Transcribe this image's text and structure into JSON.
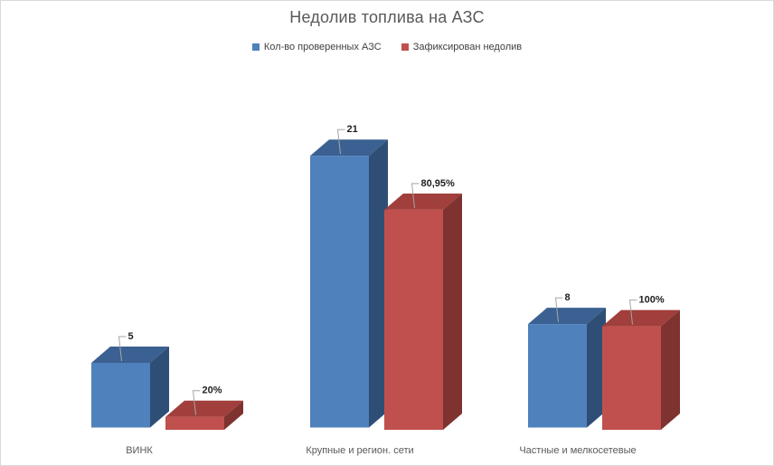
{
  "title": "Недолив топлива на АЗС",
  "legend": {
    "items": [
      {
        "label": "Кол-во проверенных АЗС",
        "color": "#4F81BD"
      },
      {
        "label": "Зафиксирован недолив",
        "color": "#C0504D"
      }
    ]
  },
  "chart_data": {
    "type": "bar",
    "style": "3d-clustered-column",
    "title": "Недолив топлива на АЗС",
    "categories": [
      "ВИНК",
      "Крупные и регион. сети",
      "Частные и мелкосетевые"
    ],
    "series": [
      {
        "name": "Кол-во проверенных АЗС",
        "values": [
          5,
          21,
          8
        ],
        "data_labels": [
          "5",
          "21",
          "8"
        ],
        "colors": {
          "front": "#4F81BD",
          "top": "#3A6191",
          "side": "#2F4E76"
        }
      },
      {
        "name": "Зафиксирован недолив",
        "values": [
          1,
          17,
          8
        ],
        "data_labels": [
          "20%",
          "80,95%",
          "100%"
        ],
        "percent_of_checked": [
          "20%",
          "80,95%",
          "100%"
        ],
        "colors": {
          "front": "#C0504D",
          "top": "#A03F3C",
          "side": "#7E3330"
        }
      }
    ],
    "value_axis_visible": false,
    "gridlines": false,
    "legend_position": "top",
    "title_color": "#595959",
    "category_label_color": "#595959",
    "data_label_color": "#1F1F1F",
    "leader_line_color": "#A6A6A6",
    "chart_border_color": "#D9D9D9",
    "background_color": "#FFFFFF"
  }
}
